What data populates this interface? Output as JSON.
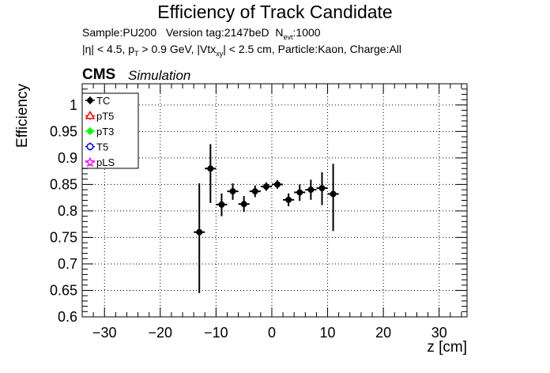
{
  "chart_data": {
    "type": "scatter",
    "title": "Efficiency of Track Candidate",
    "info": {
      "sample_line": {
        "sample": "Sample:PU200",
        "version": "Version tag:2147beD",
        "nevt_label": "N",
        "nevt_sub": "evt",
        "nevt_value": ":1000"
      },
      "cuts_line": {
        "eta": "|η| < 4.5, p",
        "pt_sub": "T",
        "pt_rest": " > 0.9 GeV, |Vtx",
        "vtx_sub": "xy",
        "rest": "| < 2.5 cm, Particle:Kaon, Charge:All"
      }
    },
    "cms_label": "CMS",
    "simulation_label": "Simulation",
    "xlabel": "z [cm]",
    "ylabel": "Efficiency",
    "xlim": [
      -34,
      35
    ],
    "ylim": [
      0.6,
      1.04
    ],
    "x_ticks": [
      -30,
      -20,
      -10,
      0,
      10,
      20,
      30
    ],
    "y_ticks": [
      0.6,
      0.65,
      0.7,
      0.75,
      0.8,
      0.85,
      0.9,
      0.95,
      1
    ],
    "grid": true,
    "legend_placement": "top-left",
    "legend": [
      {
        "name": "TC",
        "color": "#000000",
        "marker": "filled-circle"
      },
      {
        "name": "pT5",
        "color": "#ff0000",
        "marker": "open-triangle"
      },
      {
        "name": "pT3",
        "color": "#00ff00",
        "marker": "filled-circle"
      },
      {
        "name": "T5",
        "color": "#0000ff",
        "marker": "open-circle"
      },
      {
        "name": "pLS",
        "color": "#ff00ff",
        "marker": "open-star"
      }
    ],
    "series": [
      {
        "name": "TC",
        "color": "#000000",
        "x_err": 1,
        "points": [
          {
            "x": -13,
            "y": 0.76,
            "err_up": 0.092,
            "err_down": 0.115
          },
          {
            "x": -11,
            "y": 0.88,
            "err_up": 0.046,
            "err_down": 0.065
          },
          {
            "x": -9,
            "y": 0.812,
            "err_up": 0.021,
            "err_down": 0.022
          },
          {
            "x": -7,
            "y": 0.837,
            "err_up": 0.015,
            "err_down": 0.016
          },
          {
            "x": -5,
            "y": 0.813,
            "err_up": 0.015,
            "err_down": 0.015
          },
          {
            "x": -3,
            "y": 0.837,
            "err_up": 0.011,
            "err_down": 0.011
          },
          {
            "x": -1,
            "y": 0.846,
            "err_up": 0.008,
            "err_down": 0.008
          },
          {
            "x": 1,
            "y": 0.85,
            "err_up": 0.008,
            "err_down": 0.008
          },
          {
            "x": 3,
            "y": 0.821,
            "err_up": 0.012,
            "err_down": 0.012
          },
          {
            "x": 5,
            "y": 0.835,
            "err_up": 0.015,
            "err_down": 0.016
          },
          {
            "x": 7,
            "y": 0.84,
            "err_up": 0.019,
            "err_down": 0.019
          },
          {
            "x": 9,
            "y": 0.843,
            "err_up": 0.03,
            "err_down": 0.032
          },
          {
            "x": 11,
            "y": 0.832,
            "err_up": 0.057,
            "err_down": 0.07
          }
        ]
      }
    ]
  }
}
